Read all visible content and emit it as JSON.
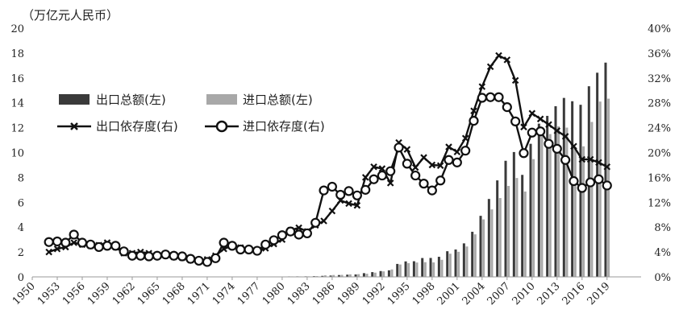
{
  "chart_data": {
    "type": "bar+line",
    "unit_label": "（万亿元人民币）",
    "x_ticks": [
      "1950",
      "1953",
      "1956",
      "1959",
      "1962",
      "1965",
      "1968",
      "1971",
      "1974",
      "1977",
      "1980",
      "1983",
      "1986",
      "1989",
      "1992",
      "1995",
      "1998",
      "2001",
      "2004",
      "2007",
      "2010",
      "2013",
      "2016",
      "2019"
    ],
    "y_left": {
      "min": 0,
      "max": 20,
      "ticks": [
        "0",
        "2",
        "4",
        "6",
        "8",
        "10",
        "12",
        "14",
        "16",
        "18",
        "20"
      ]
    },
    "y_right": {
      "min": 0,
      "max": 40,
      "ticks": [
        "0%",
        "4%",
        "8%",
        "12%",
        "16%",
        "20%",
        "24%",
        "28%",
        "32%",
        "36%",
        "40%"
      ]
    },
    "legend": {
      "export_total": "出口总额(左)",
      "import_total": "进口总额(左)",
      "export_dependence": "出口依存度(右)",
      "import_dependence": "进口依存度(右)"
    },
    "colors": {
      "export_bar": "#3a3a3a",
      "import_bar": "#a8a8a8",
      "line": "#111111"
    },
    "years": [
      1952,
      1953,
      1954,
      1955,
      1956,
      1957,
      1958,
      1959,
      1960,
      1961,
      1962,
      1963,
      1964,
      1965,
      1966,
      1967,
      1968,
      1969,
      1970,
      1971,
      1972,
      1973,
      1974,
      1975,
      1976,
      1977,
      1978,
      1979,
      1980,
      1981,
      1982,
      1983,
      1984,
      1985,
      1986,
      1987,
      1988,
      1989,
      1990,
      1991,
      1992,
      1993,
      1994,
      1995,
      1996,
      1997,
      1998,
      1999,
      2000,
      2001,
      2002,
      2003,
      2004,
      2005,
      2006,
      2007,
      2008,
      2009,
      2010,
      2011,
      2012,
      2013,
      2014,
      2015,
      2016,
      2017,
      2018,
      2019
    ],
    "series": [
      {
        "name": "出口总额(左)",
        "kind": "bar",
        "axis": "left",
        "values": [
          0.003,
          0.003,
          0.004,
          0.005,
          0.005,
          0.005,
          0.007,
          0.008,
          0.006,
          0.005,
          0.005,
          0.005,
          0.006,
          0.006,
          0.007,
          0.006,
          0.006,
          0.006,
          0.006,
          0.007,
          0.008,
          0.012,
          0.014,
          0.014,
          0.013,
          0.014,
          0.017,
          0.021,
          0.027,
          0.037,
          0.041,
          0.044,
          0.058,
          0.081,
          0.108,
          0.147,
          0.177,
          0.196,
          0.299,
          0.383,
          0.468,
          0.528,
          1.042,
          1.245,
          1.258,
          1.516,
          1.522,
          1.616,
          2.063,
          2.202,
          2.695,
          3.629,
          4.91,
          6.265,
          7.76,
          9.337,
          10.039,
          8.203,
          10.702,
          12.324,
          12.948,
          13.725,
          14.391,
          14.124,
          13.84,
          15.33,
          16.418,
          17.23
        ]
      },
      {
        "name": "进口总额(左)",
        "kind": "bar",
        "axis": "left",
        "values": [
          0.004,
          0.004,
          0.004,
          0.006,
          0.005,
          0.005,
          0.006,
          0.007,
          0.007,
          0.004,
          0.003,
          0.004,
          0.004,
          0.005,
          0.005,
          0.005,
          0.005,
          0.005,
          0.006,
          0.005,
          0.006,
          0.01,
          0.015,
          0.015,
          0.013,
          0.013,
          0.019,
          0.024,
          0.03,
          0.037,
          0.036,
          0.042,
          0.062,
          0.126,
          0.15,
          0.161,
          0.205,
          0.22,
          0.257,
          0.34,
          0.444,
          0.599,
          0.996,
          1.105,
          1.156,
          1.181,
          1.163,
          1.374,
          1.864,
          2.016,
          2.444,
          3.42,
          4.623,
          5.428,
          6.338,
          7.313,
          7.953,
          6.862,
          9.47,
          11.324,
          11.484,
          12.104,
          12.004,
          10.445,
          10.497,
          12.46,
          14.098,
          14.331
        ]
      },
      {
        "name": "出口依存度(右)",
        "kind": "line",
        "axis": "right",
        "marker": "x",
        "values": [
          4.0,
          4.5,
          4.8,
          5.5,
          5.2,
          5.0,
          5.1,
          5.5,
          4.8,
          3.8,
          3.8,
          4.0,
          3.8,
          3.5,
          3.5,
          3.2,
          3.1,
          2.7,
          2.5,
          2.8,
          3.4,
          4.5,
          5.0,
          4.7,
          4.3,
          4.2,
          4.6,
          5.3,
          6.0,
          7.5,
          7.9,
          7.3,
          8.3,
          9.0,
          10.6,
          12.3,
          11.8,
          11.5,
          16.0,
          17.7,
          17.4,
          15.1,
          21.6,
          20.5,
          17.6,
          19.2,
          18.0,
          17.9,
          20.9,
          20.1,
          22.3,
          26.7,
          30.6,
          33.8,
          35.6,
          34.9,
          31.6,
          24.1,
          26.3,
          25.4,
          24.5,
          23.5,
          22.6,
          21.0,
          18.9,
          18.9,
          18.4,
          17.7
        ]
      },
      {
        "name": "进口依存度(右)",
        "kind": "line",
        "axis": "right",
        "marker": "o",
        "values": [
          5.6,
          5.7,
          5.5,
          6.8,
          5.5,
          5.2,
          4.8,
          5.0,
          5.0,
          4.1,
          3.4,
          3.4,
          3.3,
          3.4,
          3.6,
          3.4,
          3.3,
          2.9,
          2.6,
          2.4,
          3.0,
          5.5,
          5.0,
          4.4,
          4.4,
          4.2,
          5.2,
          5.9,
          6.7,
          7.3,
          6.8,
          7.0,
          8.7,
          13.9,
          14.5,
          13.2,
          13.8,
          13.1,
          14.0,
          15.7,
          16.3,
          17.0,
          20.8,
          18.2,
          16.3,
          15.0,
          13.9,
          15.5,
          18.8,
          18.4,
          20.3,
          25.1,
          28.8,
          28.9,
          28.9,
          27.3,
          25.0,
          19.9,
          23.2,
          23.4,
          21.4,
          20.6,
          18.8,
          15.4,
          14.3,
          15.2,
          15.7,
          14.7
        ]
      }
    ]
  }
}
